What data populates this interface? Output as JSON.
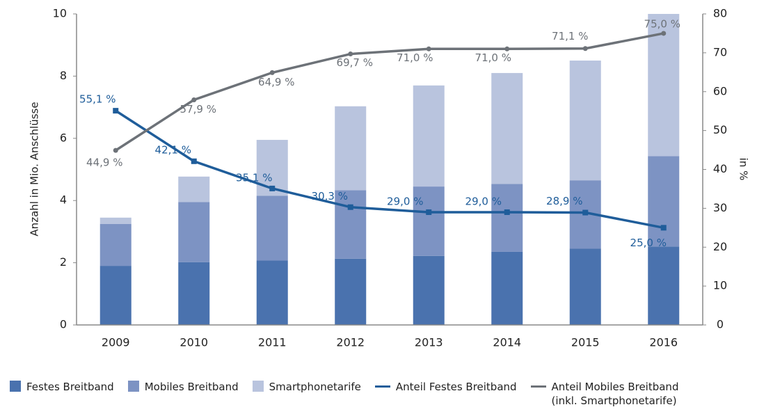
{
  "chart_data": {
    "type": "bar",
    "categories": [
      "2009",
      "2010",
      "2011",
      "2012",
      "2013",
      "2014",
      "2015",
      "2016"
    ],
    "ylabel": "Anzahl in Mio. Anschlüsse",
    "y2label": "in %",
    "ylim": [
      0,
      10
    ],
    "yticks": [
      0,
      2,
      4,
      6,
      8,
      10
    ],
    "y2lim": [
      0,
      80
    ],
    "y2ticks": [
      0,
      10,
      20,
      30,
      40,
      50,
      60,
      70,
      80
    ],
    "grid": false,
    "legend": "bottom",
    "series": [
      {
        "name": "Festes Breitband",
        "type": "bar",
        "color": "#4a72ae",
        "values": [
          1.9,
          2.02,
          2.07,
          2.13,
          2.22,
          2.35,
          2.45,
          2.52
        ]
      },
      {
        "name": "Mobiles Breitband",
        "type": "bar",
        "color": "#7d93c3",
        "values": [
          1.35,
          1.93,
          2.08,
          2.2,
          2.23,
          2.18,
          2.2,
          2.91
        ]
      },
      {
        "name": "Smartphonetarife",
        "type": "bar",
        "color": "#b9c4de",
        "values": [
          0.2,
          0.82,
          1.8,
          2.7,
          3.25,
          3.57,
          3.85,
          4.57
        ]
      },
      {
        "name": "Anteil Festes Breitband",
        "type": "line",
        "axis": "y2",
        "color": "#1f5d9a",
        "values": [
          55.1,
          42.1,
          35.1,
          30.3,
          29.0,
          29.0,
          28.9,
          25.0
        ],
        "value_labels": [
          "55,1 %",
          "42,1 %",
          "35,1 %",
          "30,3 %",
          "29,0 %",
          "29,0 %",
          "28,9 %",
          "25,0 %"
        ]
      },
      {
        "name": "Anteil Mobiles Breitband (inkl. Smartphonetarife)",
        "type": "line",
        "axis": "y2",
        "color": "#6d7278",
        "values": [
          44.9,
          57.9,
          64.9,
          69.7,
          71.0,
          71.0,
          71.1,
          75.0
        ],
        "value_labels": [
          "44,9 %",
          "57,9 %",
          "64,9 %",
          "69,7 %",
          "71,0 %",
          "71,0 %",
          "71,1 %",
          "75,0 %"
        ]
      }
    ]
  }
}
